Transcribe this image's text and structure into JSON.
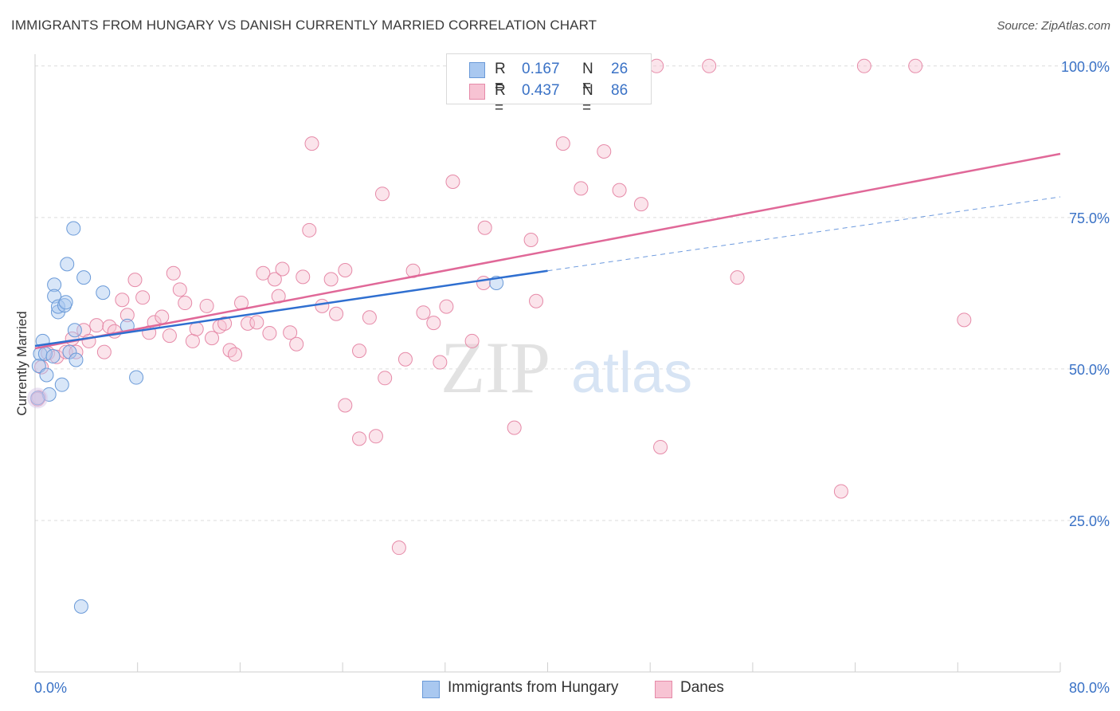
{
  "title": "IMMIGRANTS FROM HUNGARY VS DANISH CURRENTLY MARRIED CORRELATION CHART",
  "source": "Source: ZipAtlas.com",
  "watermark": {
    "zip": "ZIP",
    "atlas": "atlas"
  },
  "legend": {
    "rows": [
      {
        "r_label": "R =",
        "r_value": "0.167",
        "n_label": "N =",
        "n_value": "26",
        "color": "#a9c8f0",
        "edge": "#6a9ad8"
      },
      {
        "r_label": "R =",
        "r_value": "0.437",
        "n_label": "N =",
        "n_value": "86",
        "color": "#f7c3d3",
        "edge": "#e68aa8"
      }
    ]
  },
  "bottom_legend": {
    "items": [
      {
        "label": "Immigrants from Hungary",
        "color": "#a9c8f0",
        "edge": "#6a9ad8"
      },
      {
        "label": "Danes",
        "color": "#f7c3d3",
        "edge": "#e68aa8"
      }
    ]
  },
  "chart_data": {
    "type": "scatter",
    "title": "IMMIGRANTS FROM HUNGARY VS DANISH CURRENTLY MARRIED CORRELATION CHART",
    "xlabel": "",
    "ylabel": "Currently Married",
    "xlim": [
      0,
      80
    ],
    "ylim": [
      0,
      103
    ],
    "x_tick_labels": [
      "0.0%",
      "80.0%"
    ],
    "y_ticks": [
      25,
      50,
      75,
      100
    ],
    "y_tick_labels": [
      "25.0%",
      "50.0%",
      "75.0%",
      "100.0%"
    ],
    "grid": "horizontal dashed",
    "series": [
      {
        "name": "Immigrants from Hungary",
        "color": "#a9c8f0",
        "edge": "#6a9ad8",
        "trend_color": "#2f6fd0",
        "trend_solid": [
          [
            0,
            53.8
          ],
          [
            40,
            66.2
          ]
        ],
        "trend_dashed": [
          [
            40,
            66.2
          ],
          [
            80,
            78.4
          ]
        ],
        "points": [
          [
            0.4,
            52.5
          ],
          [
            0.6,
            54.6
          ],
          [
            0.3,
            50.5
          ],
          [
            0.9,
            49.0
          ],
          [
            1.1,
            45.8
          ],
          [
            0.8,
            52.5
          ],
          [
            1.4,
            52.1
          ],
          [
            1.5,
            63.9
          ],
          [
            1.5,
            62.0
          ],
          [
            1.8,
            59.4
          ],
          [
            1.8,
            60.3
          ],
          [
            2.3,
            60.5
          ],
          [
            2.4,
            61.0
          ],
          [
            2.5,
            67.3
          ],
          [
            2.1,
            47.4
          ],
          [
            2.7,
            52.8
          ],
          [
            3.0,
            73.2
          ],
          [
            3.1,
            56.4
          ],
          [
            3.2,
            51.5
          ],
          [
            3.8,
            65.1
          ],
          [
            5.3,
            62.6
          ],
          [
            7.2,
            57.1
          ],
          [
            7.9,
            48.6
          ],
          [
            36.0,
            64.2
          ],
          [
            3.6,
            10.8
          ],
          [
            0.2,
            45.2
          ]
        ]
      },
      {
        "name": "Danes",
        "color": "#f7c3d3",
        "edge": "#e68aa8",
        "trend_color": "#e06898",
        "trend_solid": [
          [
            0,
            53.4
          ],
          [
            80,
            85.5
          ]
        ],
        "points": [
          [
            0.3,
            45.3
          ],
          [
            0.5,
            50.3
          ],
          [
            1.0,
            52.6
          ],
          [
            1.7,
            52.0
          ],
          [
            2.4,
            52.8
          ],
          [
            2.9,
            55.0
          ],
          [
            3.2,
            52.8
          ],
          [
            3.8,
            56.4
          ],
          [
            4.2,
            54.6
          ],
          [
            4.8,
            57.2
          ],
          [
            5.4,
            52.8
          ],
          [
            5.8,
            57.0
          ],
          [
            6.2,
            56.2
          ],
          [
            6.8,
            61.4
          ],
          [
            7.2,
            58.9
          ],
          [
            7.8,
            64.7
          ],
          [
            8.4,
            61.8
          ],
          [
            8.9,
            56.0
          ],
          [
            9.3,
            57.7
          ],
          [
            9.9,
            58.6
          ],
          [
            10.5,
            55.5
          ],
          [
            10.8,
            65.8
          ],
          [
            11.3,
            63.1
          ],
          [
            11.7,
            60.9
          ],
          [
            12.3,
            54.6
          ],
          [
            12.6,
            56.6
          ],
          [
            13.4,
            60.4
          ],
          [
            13.8,
            55.1
          ],
          [
            14.4,
            57.0
          ],
          [
            14.8,
            57.5
          ],
          [
            15.2,
            53.1
          ],
          [
            15.6,
            52.4
          ],
          [
            16.1,
            60.9
          ],
          [
            16.6,
            57.5
          ],
          [
            17.3,
            57.7
          ],
          [
            17.8,
            65.8
          ],
          [
            18.3,
            55.9
          ],
          [
            18.7,
            64.8
          ],
          [
            19.0,
            62.0
          ],
          [
            19.3,
            66.5
          ],
          [
            19.9,
            56.0
          ],
          [
            20.4,
            54.1
          ],
          [
            20.9,
            65.2
          ],
          [
            21.4,
            72.9
          ],
          [
            21.6,
            87.2
          ],
          [
            22.4,
            60.4
          ],
          [
            23.1,
            64.8
          ],
          [
            23.5,
            59.1
          ],
          [
            24.2,
            66.3
          ],
          [
            25.3,
            53.0
          ],
          [
            25.3,
            38.5
          ],
          [
            26.1,
            58.5
          ],
          [
            26.6,
            38.9
          ],
          [
            27.3,
            48.5
          ],
          [
            27.1,
            78.9
          ],
          [
            28.4,
            20.5
          ],
          [
            28.9,
            51.6
          ],
          [
            29.5,
            66.2
          ],
          [
            30.3,
            59.3
          ],
          [
            31.1,
            57.6
          ],
          [
            31.6,
            51.1
          ],
          [
            32.1,
            60.3
          ],
          [
            32.6,
            80.9
          ],
          [
            34.1,
            54.6
          ],
          [
            35.0,
            64.2
          ],
          [
            35.1,
            73.3
          ],
          [
            37.4,
            40.3
          ],
          [
            38.7,
            71.3
          ],
          [
            39.1,
            61.2
          ],
          [
            41.2,
            87.2
          ],
          [
            42.6,
            79.8
          ],
          [
            44.4,
            85.9
          ],
          [
            45.6,
            79.5
          ],
          [
            47.3,
            77.2
          ],
          [
            48.5,
            100.0
          ],
          [
            48.8,
            37.1
          ],
          [
            52.6,
            100.0
          ],
          [
            54.8,
            65.1
          ],
          [
            62.9,
            29.8
          ],
          [
            64.7,
            100.0
          ],
          [
            68.7,
            100.0
          ],
          [
            72.5,
            58.1
          ],
          [
            38.8,
            95.8
          ],
          [
            24.2,
            44.0
          ],
          [
            43.6,
            100.0
          ],
          [
            0.2,
            45.0
          ]
        ]
      }
    ]
  }
}
